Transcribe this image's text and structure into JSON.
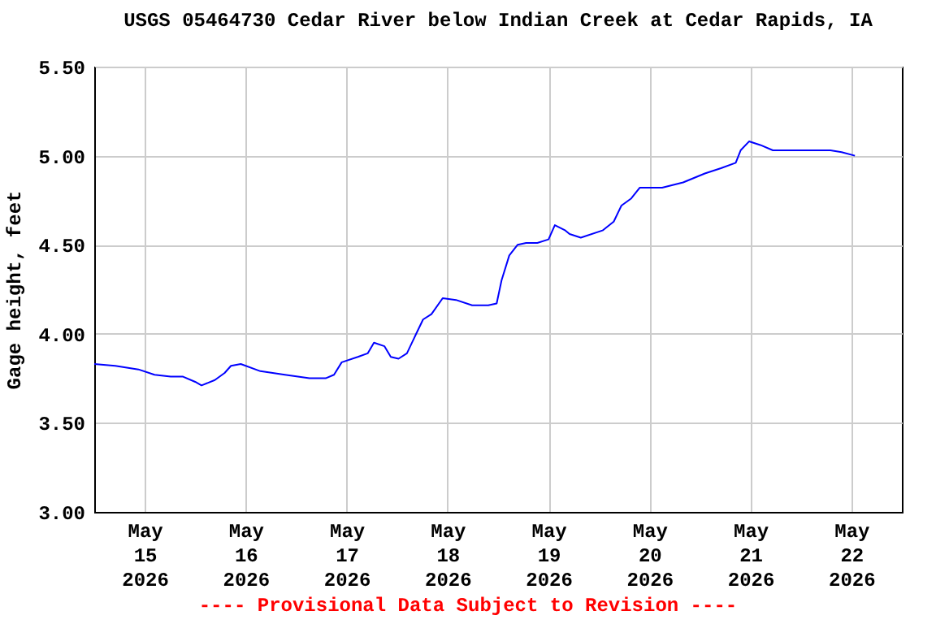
{
  "chart_data": {
    "type": "line",
    "title": "USGS 05464730 Cedar River below Indian Creek at Cedar Rapids, IA",
    "ylabel": "Gage height, feet",
    "annotations": [
      "---- Provisional Data Subject to Revision ----"
    ],
    "x": [
      "2026-05-14T12:00",
      "2026-05-14T17:00",
      "2026-05-14T22:30",
      "2026-05-15T02:20",
      "2026-05-15T06:10",
      "2026-05-15T09:00",
      "2026-05-15T12:00",
      "2026-05-15T13:30",
      "2026-05-15T16:40",
      "2026-05-15T19:00",
      "2026-05-15T20:30",
      "2026-05-15T22:50",
      "2026-05-16T03:30",
      "2026-05-16T09:20",
      "2026-05-16T15:10",
      "2026-05-16T19:00",
      "2026-05-16T21:00",
      "2026-05-16T22:50",
      "2026-05-17T02:40",
      "2026-05-17T05:00",
      "2026-05-17T06:30",
      "2026-05-17T09:00",
      "2026-05-17T10:30",
      "2026-05-17T12:20",
      "2026-05-17T14:20",
      "2026-05-17T16:20",
      "2026-05-17T18:10",
      "2026-05-17T20:10",
      "2026-05-17T22:50",
      "2026-05-18T02:00",
      "2026-05-18T05:50",
      "2026-05-18T09:40",
      "2026-05-18T11:40",
      "2026-05-18T12:50",
      "2026-05-18T14:40",
      "2026-05-18T16:40",
      "2026-05-18T18:40",
      "2026-05-18T21:20",
      "2026-05-19T00:00",
      "2026-05-19T01:30",
      "2026-05-19T04:00",
      "2026-05-19T05:00",
      "2026-05-19T07:40",
      "2026-05-19T12:50",
      "2026-05-19T15:30",
      "2026-05-19T17:20",
      "2026-05-19T19:40",
      "2026-05-19T21:40",
      "2026-05-20T03:00",
      "2026-05-20T08:00",
      "2026-05-20T13:10",
      "2026-05-20T17:00",
      "2026-05-20T20:30",
      "2026-05-20T21:40",
      "2026-05-20T23:40",
      "2026-05-21T02:20",
      "2026-05-21T05:20",
      "2026-05-21T12:20",
      "2026-05-21T19:00",
      "2026-05-21T21:40",
      "2026-05-22T00:50"
    ],
    "series": [
      {
        "color": "#0000ff",
        "values": [
          3.83,
          3.82,
          3.8,
          3.77,
          3.76,
          3.76,
          3.73,
          3.71,
          3.74,
          3.78,
          3.82,
          3.83,
          3.79,
          3.77,
          3.75,
          3.75,
          3.77,
          3.84,
          3.87,
          3.89,
          3.95,
          3.93,
          3.87,
          3.86,
          3.89,
          3.99,
          4.08,
          4.11,
          4.2,
          4.19,
          4.16,
          4.16,
          4.17,
          4.3,
          4.44,
          4.5,
          4.51,
          4.51,
          4.53,
          4.61,
          4.58,
          4.56,
          4.54,
          4.58,
          4.63,
          4.72,
          4.76,
          4.82,
          4.82,
          4.85,
          4.9,
          4.93,
          4.96,
          5.03,
          5.08,
          5.06,
          5.03,
          5.03,
          5.03,
          5.02,
          5.0
        ]
      }
    ],
    "xlim": [
      "2026-05-14T12:00",
      "2026-05-22T12:00"
    ],
    "xticks": [
      {
        "value": "2026-05-15T00:00",
        "label": "May 15 2026"
      },
      {
        "value": "2026-05-16T00:00",
        "label": "May 16 2026"
      },
      {
        "value": "2026-05-17T00:00",
        "label": "May 17 2026"
      },
      {
        "value": "2026-05-18T00:00",
        "label": "May 18 2026"
      },
      {
        "value": "2026-05-19T00:00",
        "label": "May 19 2026"
      },
      {
        "value": "2026-05-20T00:00",
        "label": "May 20 2026"
      },
      {
        "value": "2026-05-21T00:00",
        "label": "May 21 2026"
      },
      {
        "value": "2026-05-22T00:00",
        "label": "May 22 2026"
      }
    ],
    "ylim": [
      3.0,
      5.5
    ],
    "yticks": [
      {
        "value": 3.0,
        "label": "3.00"
      },
      {
        "value": 3.5,
        "label": "3.50"
      },
      {
        "value": 4.0,
        "label": "4.00"
      },
      {
        "value": 4.5,
        "label": "4.50"
      },
      {
        "value": 5.0,
        "label": "5.00"
      },
      {
        "value": 5.5,
        "label": "5.50"
      }
    ],
    "grid": true
  }
}
